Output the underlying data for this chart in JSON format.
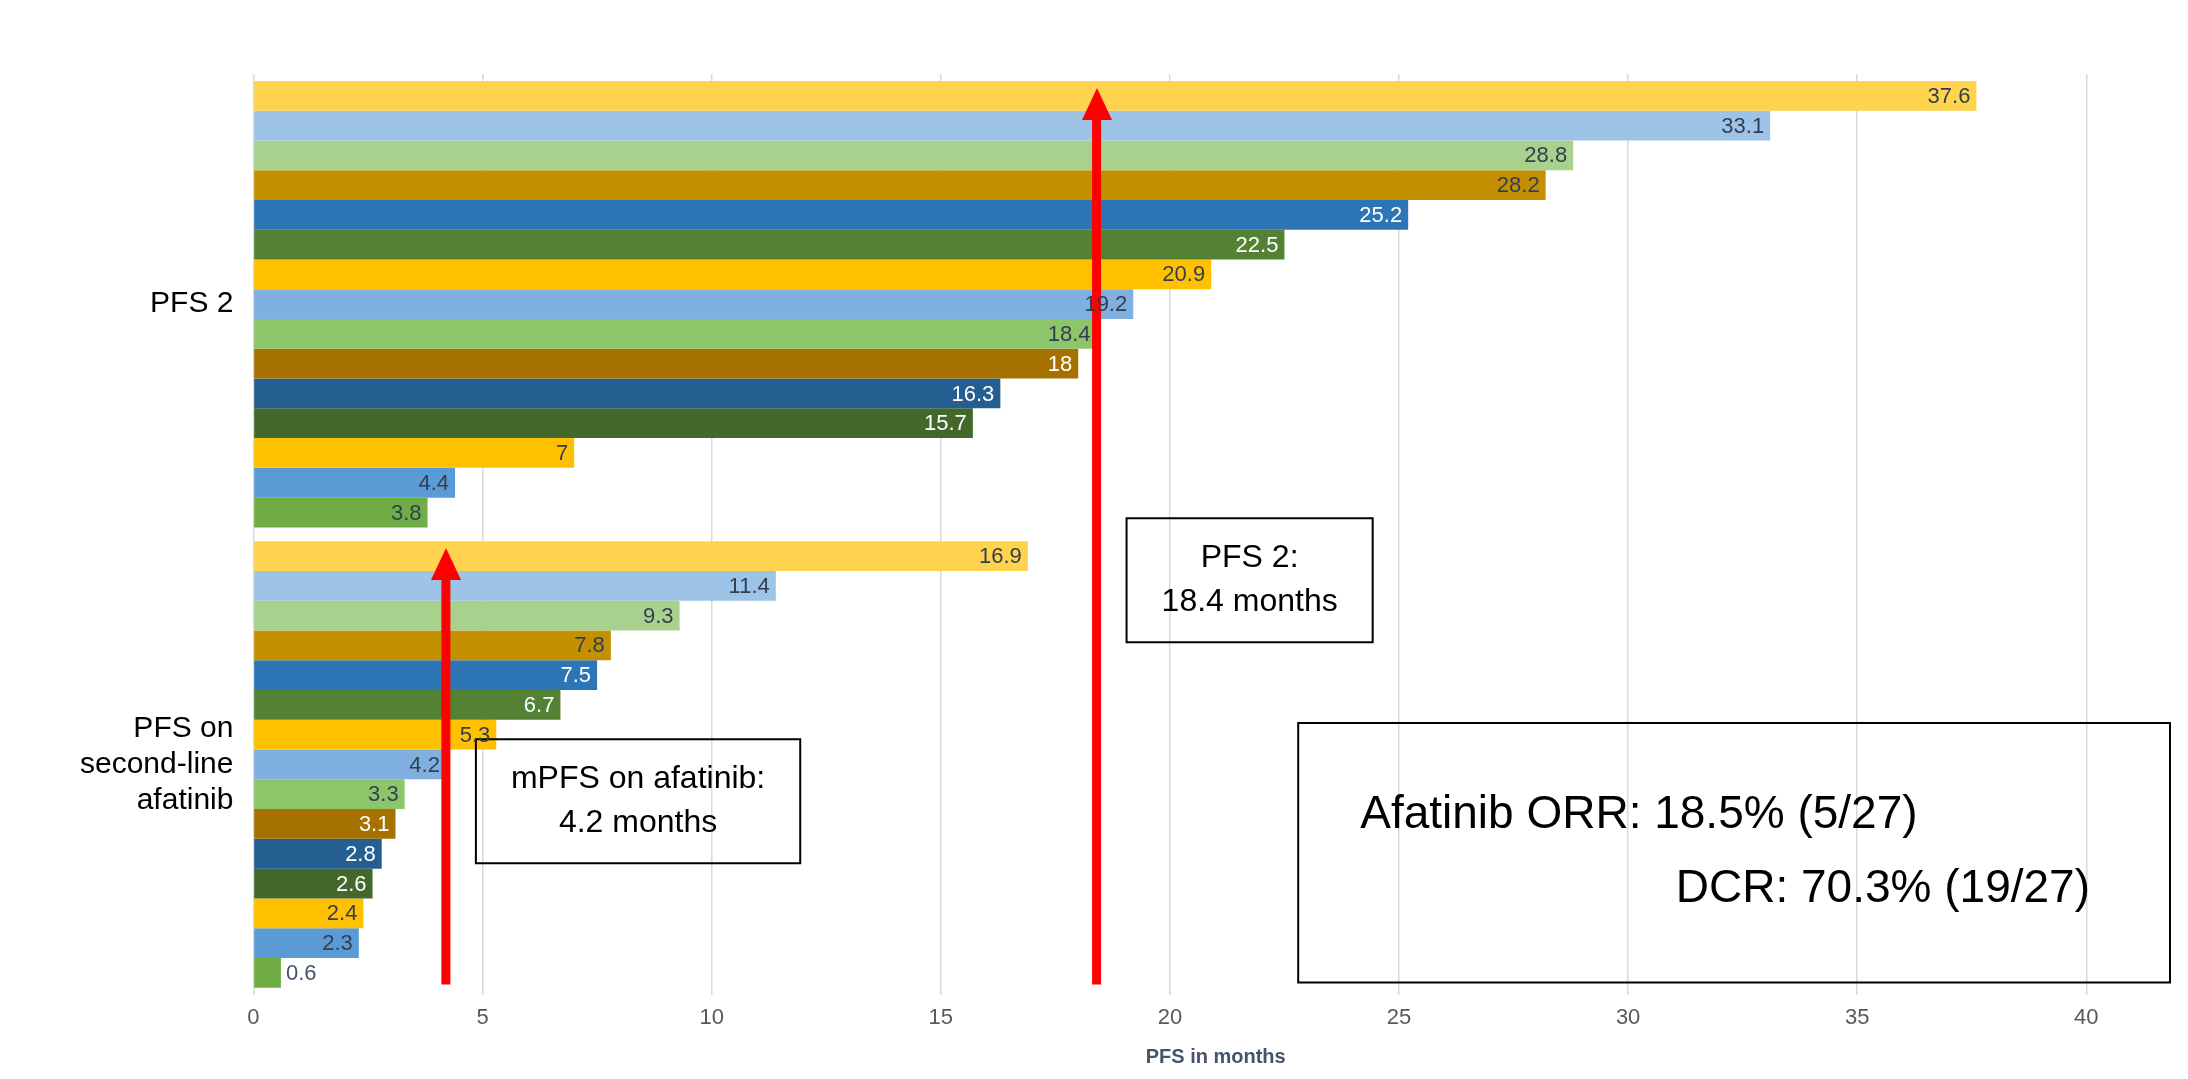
{
  "chart_data": {
    "type": "bar",
    "orientation": "horizontal",
    "xlabel": "PFS in months",
    "categories": [
      "PFS 2",
      "PFS on second-line afatinib"
    ],
    "series": [
      {
        "color": "#ffd34d",
        "values": [
          37.6,
          16.9
        ]
      },
      {
        "color": "#9dc3e6",
        "values": [
          33.1,
          11.4
        ]
      },
      {
        "color": "#a9d18e",
        "values": [
          28.8,
          9.3
        ]
      },
      {
        "color": "#c59000",
        "values": [
          28.2,
          7.8
        ]
      },
      {
        "color": "#2e75b6",
        "values": [
          25.2,
          7.5
        ]
      },
      {
        "color": "#548235",
        "values": [
          22.5,
          6.7
        ]
      },
      {
        "color": "#ffc000",
        "values": [
          20.9,
          5.3
        ]
      },
      {
        "color": "#7fb0df",
        "values": [
          19.2,
          4.2
        ]
      },
      {
        "color": "#8cc56a",
        "values": [
          18.4,
          3.3
        ]
      },
      {
        "color": "#a57100",
        "values": [
          18,
          3.1
        ]
      },
      {
        "color": "#255e91",
        "values": [
          16.3,
          2.8
        ]
      },
      {
        "color": "#43682b",
        "values": [
          15.7,
          2.6
        ]
      },
      {
        "color": "#ffc000",
        "values": [
          7,
          2.4
        ]
      },
      {
        "color": "#5b9bd5",
        "values": [
          4.4,
          2.3
        ]
      },
      {
        "color": "#70ad47",
        "values": [
          3.8,
          0.6
        ]
      }
    ],
    "xlim": [
      0,
      42
    ],
    "xticks": [
      0,
      5,
      10,
      15,
      20,
      25,
      30,
      35,
      40
    ],
    "grid": "x",
    "legend": false,
    "data_labels": true,
    "ref_lines": [
      {
        "axis": "x",
        "value": 4.2,
        "label": "mPFS on afatinib:\n4.2 months",
        "color": "#ff0000"
      },
      {
        "axis": "x",
        "value": 18.4,
        "label": "PFS 2:\n18.4 months",
        "color": "#ff0000"
      }
    ],
    "annotations": [
      "Afatinib ORR: 18.5% (5/27)\nDCR: 70.3% (19/27)"
    ]
  }
}
